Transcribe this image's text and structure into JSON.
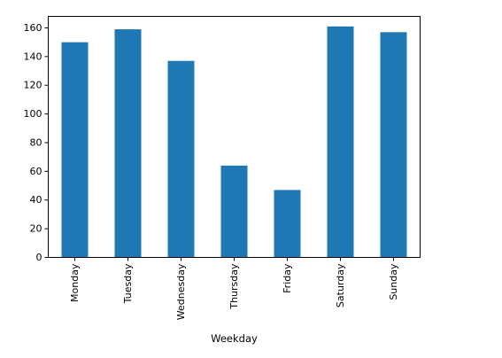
{
  "chart_data": {
    "type": "bar",
    "categories": [
      "Monday",
      "Tuesday",
      "Wednesday",
      "Thursday",
      "Friday",
      "Saturday",
      "Sunday"
    ],
    "values": [
      150,
      159,
      137,
      64,
      47,
      161,
      157
    ],
    "title": "",
    "xlabel": "Weekday",
    "ylabel": "",
    "ylim": [
      0,
      168
    ],
    "yticks": [
      0,
      20,
      40,
      60,
      80,
      100,
      120,
      140,
      160
    ],
    "grid": false,
    "legend": "none",
    "bar_color": "#1f77b4"
  }
}
